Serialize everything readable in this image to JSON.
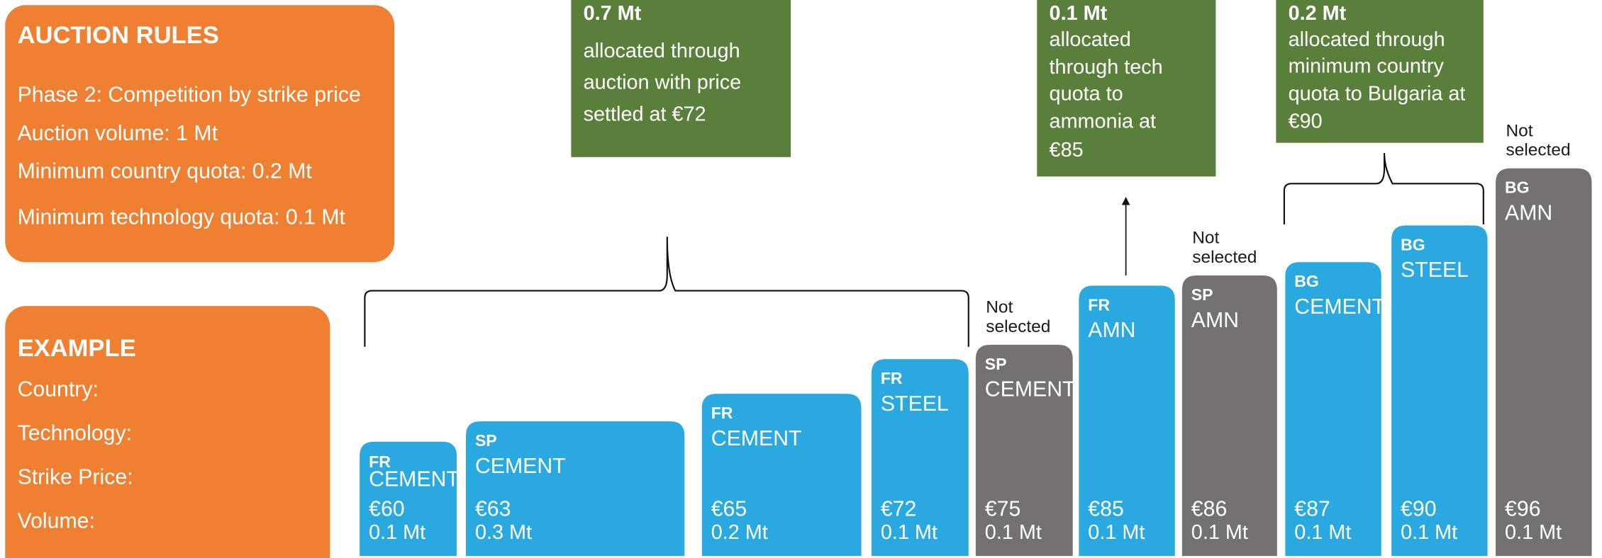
{
  "rules": {
    "title": "AUCTION RULES",
    "items": [
      "Phase 2: Competition by strike price",
      "Auction volume: 1 Mt",
      "Minimum country quota: 0.2 Mt",
      "Minimum technology quota: 0.1 Mt"
    ]
  },
  "example": {
    "title": "EXAMPLE",
    "labels": [
      "Country:",
      "Technology:",
      "Strike Price:",
      "Volume:"
    ]
  },
  "callouts": [
    {
      "amount": "0.7 Mt",
      "lines": [
        "allocated through",
        "auction with price",
        "settled at €72"
      ]
    },
    {
      "amount": "0.1 Mt",
      "lines": [
        "allocated",
        "through tech",
        "quota to",
        "ammonia at",
        "€85"
      ]
    },
    {
      "amount": "0.2 Mt",
      "lines": [
        "allocated through",
        "minimum country",
        "quota to Bulgaria at",
        "€90"
      ]
    }
  ],
  "bars": [
    {
      "country": "FR",
      "technology": "CEMENT",
      "price": "€60",
      "volume": "0.1 Mt",
      "selected": true
    },
    {
      "country": "SP",
      "technology": "CEMENT",
      "price": "€63",
      "volume": "0.3 Mt",
      "selected": true
    },
    {
      "country": "FR",
      "technology": "CEMENT",
      "price": "€65",
      "volume": "0.2 Mt",
      "selected": true
    },
    {
      "country": "FR",
      "technology": "STEEL",
      "price": "€72",
      "volume": "0.1 Mt",
      "selected": true
    },
    {
      "country": "SP",
      "technology": "CEMENT",
      "price": "€75",
      "volume": "0.1 Mt",
      "selected": false,
      "note": [
        "Not",
        "selected"
      ]
    },
    {
      "country": "FR",
      "technology": "AMN",
      "price": "€85",
      "volume": "0.1 Mt",
      "selected": true
    },
    {
      "country": "SP",
      "technology": "AMN",
      "price": "€86",
      "volume": "0.1 Mt",
      "selected": false,
      "note": [
        "Not",
        "selected"
      ]
    },
    {
      "country": "BG",
      "technology": "CEMENT",
      "price": "€87",
      "volume": "0.1 Mt",
      "selected": true
    },
    {
      "country": "BG",
      "technology": "STEEL",
      "price": "€90",
      "volume": "0.1 Mt",
      "selected": true
    },
    {
      "country": "BG",
      "technology": "AMN",
      "price": "€96",
      "volume": "0.1 Mt",
      "selected": false,
      "note": [
        "Not",
        "selected"
      ]
    }
  ]
}
